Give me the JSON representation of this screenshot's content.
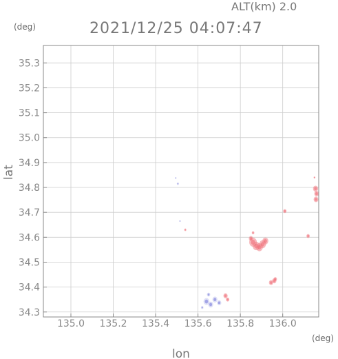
{
  "header": {
    "altitude_text": "ALT(km) 2.0",
    "timestamp": "2021/12/25 04:07:47"
  },
  "axes": {
    "lat_unit": "(deg)",
    "lon_unit": "(deg)",
    "xlabel": "lon",
    "ylabel": "lat",
    "xlim": [
      134.87,
      136.17
    ],
    "ylim": [
      34.28,
      35.37
    ],
    "x_ticks": [
      135.0,
      135.2,
      135.4,
      135.6,
      135.8,
      136.0
    ],
    "x_tick_labels": [
      "135.0",
      "135.2",
      "135.4",
      "135.6",
      "135.8",
      "136.0"
    ],
    "y_ticks": [
      34.3,
      34.4,
      34.5,
      34.6,
      34.7,
      34.8,
      34.9,
      35.0,
      35.1,
      35.2,
      35.3
    ],
    "y_tick_labels": [
      "34.3",
      "34.4",
      "34.5",
      "34.6",
      "34.7",
      "34.8",
      "34.9",
      "35.0",
      "35.1",
      "35.2",
      "35.3"
    ],
    "grid": true
  },
  "colors": {
    "approaching": "#6f73d8",
    "approaching_light": "#c9cdf2",
    "receding": "#f07f86",
    "receding_light": "#f6b8bb",
    "receding_strong": "#ee5963"
  },
  "chart_data": {
    "type": "scatter",
    "title": "2021/12/25 04:07:47",
    "xlabel": "lon",
    "ylabel": "lat",
    "xlim": [
      134.87,
      136.17
    ],
    "ylim": [
      34.28,
      35.37
    ],
    "series": [
      {
        "color": "#f07f86",
        "points": [
          {
            "x": 135.86,
            "y": 34.58,
            "r": 0.018
          },
          {
            "x": 135.875,
            "y": 34.565,
            "r": 0.017
          },
          {
            "x": 135.89,
            "y": 34.56,
            "r": 0.016
          },
          {
            "x": 135.905,
            "y": 34.572,
            "r": 0.016
          },
          {
            "x": 135.918,
            "y": 34.585,
            "r": 0.014
          },
          {
            "x": 135.85,
            "y": 34.595,
            "r": 0.01
          },
          {
            "x": 135.86,
            "y": 34.618,
            "r": 0.006
          },
          {
            "x": 135.945,
            "y": 34.418,
            "r": 0.01
          },
          {
            "x": 135.96,
            "y": 34.425,
            "r": 0.01
          },
          {
            "x": 135.965,
            "y": 34.432,
            "r": 0.008
          },
          {
            "x": 136.155,
            "y": 34.795,
            "r": 0.012
          },
          {
            "x": 136.16,
            "y": 34.775,
            "r": 0.011
          },
          {
            "x": 136.157,
            "y": 34.752,
            "r": 0.011
          },
          {
            "x": 136.15,
            "y": 34.84,
            "r": 0.004
          },
          {
            "x": 136.01,
            "y": 34.705,
            "r": 0.008
          },
          {
            "x": 136.12,
            "y": 34.605,
            "r": 0.008
          },
          {
            "x": 135.54,
            "y": 34.63,
            "r": 0.005
          },
          {
            "x": 135.73,
            "y": 34.365,
            "r": 0.01
          },
          {
            "x": 135.74,
            "y": 34.35,
            "r": 0.008
          }
        ]
      },
      {
        "color": "#6f73d8",
        "points": [
          {
            "x": 135.64,
            "y": 34.342,
            "r": 0.014
          },
          {
            "x": 135.66,
            "y": 34.33,
            "r": 0.012
          },
          {
            "x": 135.68,
            "y": 34.35,
            "r": 0.012
          },
          {
            "x": 135.7,
            "y": 34.337,
            "r": 0.01
          },
          {
            "x": 135.65,
            "y": 34.37,
            "r": 0.008
          },
          {
            "x": 135.62,
            "y": 34.318,
            "r": 0.006
          },
          {
            "x": 135.505,
            "y": 34.815,
            "r": 0.005
          },
          {
            "x": 135.495,
            "y": 34.838,
            "r": 0.003
          },
          {
            "x": 135.515,
            "y": 34.665,
            "r": 0.003
          }
        ]
      }
    ]
  }
}
